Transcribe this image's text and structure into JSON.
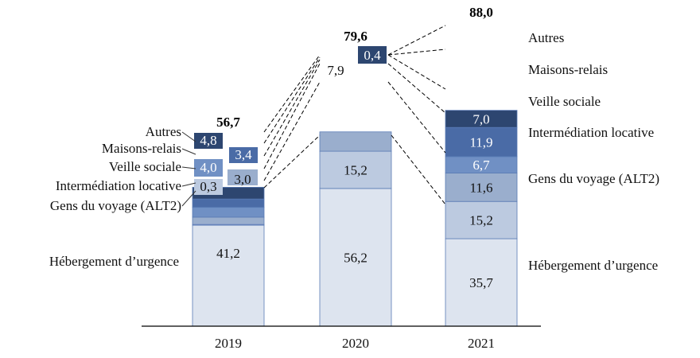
{
  "chart_data": {
    "type": "bar",
    "stacked": true,
    "categories": [
      "2019",
      "2020",
      "2021"
    ],
    "totals": [
      "56,7",
      "79,6",
      "88,0"
    ],
    "segments": {
      "2019": [
        {
          "series": "Hébergement d’urgence",
          "value": 41.2,
          "label": "41,2"
        },
        {
          "series": "Gens du voyage (ALT2)",
          "value": 0.3,
          "label": "0,3"
        },
        {
          "series": "Intermédiation locative",
          "value": 3.0,
          "label": "3,0"
        },
        {
          "series": "Veille sociale",
          "value": 4.0,
          "label": "4,0"
        },
        {
          "series": "Maisons-relais",
          "value": 3.4,
          "label": "3,4"
        },
        {
          "series": "Autres",
          "value": 4.8,
          "label": "4,8"
        }
      ],
      "2020": [
        {
          "series": "Hébergement d’urgence",
          "value": 56.2,
          "label": "56,2"
        },
        {
          "series": "Gens du voyage (ALT2)",
          "value": 15.2,
          "label": "15,2"
        },
        {
          "series": "Intermédiation locative",
          "value": 7.9,
          "label": "7,9"
        },
        {
          "series": "Autres",
          "value": 0.4,
          "label": "0,4"
        }
      ],
      "2021": [
        {
          "series": "Hébergement d’urgence",
          "value": 35.7,
          "label": "35,7"
        },
        {
          "series": "Gens du voyage (ALT2)",
          "value": 15.2,
          "label": "15,2"
        },
        {
          "series": "Intermédiation locative",
          "value": 11.6,
          "label": "11,6"
        },
        {
          "series": "Veille sociale",
          "value": 6.7,
          "label": "6,7"
        },
        {
          "series": "Maisons-relais",
          "value": 11.9,
          "label": "11,9"
        },
        {
          "series": "Autres",
          "value": 7.0,
          "label": "7,0"
        }
      ]
    },
    "left_labels": [
      "Autres",
      "Maisons-relais",
      "Veille sociale",
      "Intermédiation locative",
      "Gens du voyage (ALT2)",
      "Hébergement d’urgence"
    ],
    "right_labels": [
      "Autres",
      "Maisons-relais",
      "Veille sociale",
      "Intermédiation locative",
      "Gens du voyage (ALT2)",
      "Hébergement d’urgence"
    ],
    "colors": {
      "Hébergement d’urgence": "#dde4ef",
      "Gens du voyage (ALT2)": "#bccae0",
      "Intermédiation locative": "#9aaecd",
      "Veille sociale": "#7090c4",
      "Maisons-relais": "#4a6ba6",
      "Autres": "#2d4670"
    },
    "ylim": [
      0,
      90
    ],
    "grid": false
  }
}
